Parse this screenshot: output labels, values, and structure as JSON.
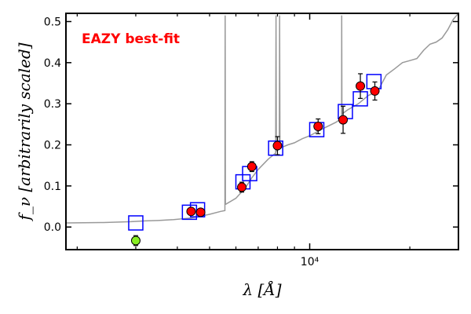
{
  "chart_data": {
    "type": "scatter",
    "title": "",
    "annotation": "EAZY best-fit",
    "annotation_color": "#ff0000",
    "xlabel": "λ [Å]",
    "ylabel": "f_ν [arbitrarily scaled]",
    "x_scale": "log",
    "xlim": [
      1850,
      28000
    ],
    "ylim": [
      -0.055,
      0.52
    ],
    "y_ticks": [
      0.0,
      0.1,
      0.2,
      0.3,
      0.4,
      0.5
    ],
    "y_tick_labels": [
      "0.0",
      "0.1",
      "0.2",
      "0.3",
      "0.4",
      "0.5"
    ],
    "x_major_ticks": [
      10000
    ],
    "x_major_tick_labels": [
      "10⁴"
    ],
    "x_minor_ticks": [
      2000,
      3000,
      4000,
      5000,
      6000,
      7000,
      8000,
      9000,
      20000
    ],
    "grid": false,
    "series": [
      {
        "kind": "model",
        "color": "#999999",
        "points": [
          [
            1850,
            0.01
          ],
          [
            2400,
            0.011
          ],
          [
            2900,
            0.013
          ],
          [
            3200,
            0.015
          ],
          [
            3500,
            0.016
          ],
          [
            3900,
            0.018
          ],
          [
            4400,
            0.022
          ],
          [
            4800,
            0.028
          ],
          [
            5000,
            0.031
          ],
          [
            5400,
            0.038
          ],
          [
            5560,
            0.04
          ],
          [
            5570,
            0.515
          ],
          [
            5580,
            0.055
          ],
          [
            6000,
            0.07
          ],
          [
            6400,
            0.095
          ],
          [
            6700,
            0.12
          ],
          [
            7000,
            0.14
          ],
          [
            7500,
            0.165
          ],
          [
            7900,
            0.18
          ],
          [
            7920,
            0.515
          ],
          [
            7940,
            0.185
          ],
          [
            8100,
            0.19
          ],
          [
            8120,
            0.515
          ],
          [
            8140,
            0.192
          ],
          [
            8300,
            0.195
          ],
          [
            8600,
            0.2
          ],
          [
            9000,
            0.205
          ],
          [
            9500,
            0.215
          ],
          [
            10000,
            0.222
          ],
          [
            11000,
            0.24
          ],
          [
            12000,
            0.255
          ],
          [
            12470,
            0.265
          ],
          [
            12480,
            0.515
          ],
          [
            12500,
            0.275
          ],
          [
            13000,
            0.285
          ],
          [
            14000,
            0.3
          ],
          [
            15000,
            0.32
          ],
          [
            16000,
            0.33
          ],
          [
            17000,
            0.37
          ],
          [
            18000,
            0.385
          ],
          [
            19000,
            0.4
          ],
          [
            20000,
            0.405
          ],
          [
            21000,
            0.41
          ],
          [
            22000,
            0.43
          ],
          [
            23000,
            0.445
          ],
          [
            24000,
            0.45
          ],
          [
            25000,
            0.46
          ],
          [
            26000,
            0.48
          ],
          [
            27000,
            0.505
          ],
          [
            28000,
            0.52
          ]
        ]
      },
      {
        "kind": "model-photometry",
        "marker": "square",
        "color": "#0000ff",
        "points": [
          [
            3000,
            0.01
          ],
          [
            4350,
            0.036
          ],
          [
            4600,
            0.042
          ],
          [
            6300,
            0.11
          ],
          [
            6600,
            0.13
          ],
          [
            7900,
            0.192
          ],
          [
            10500,
            0.237
          ],
          [
            12800,
            0.281
          ],
          [
            14200,
            0.312
          ],
          [
            15600,
            0.354
          ]
        ]
      },
      {
        "kind": "observed",
        "marker": "circle",
        "color": "#ff0000",
        "points": [
          [
            4400,
            0.038,
            0.008
          ],
          [
            4700,
            0.036,
            0.008
          ],
          [
            6250,
            0.097,
            0.012
          ],
          [
            6700,
            0.147,
            0.012
          ],
          [
            8000,
            0.198,
            0.022
          ],
          [
            10600,
            0.245,
            0.018
          ],
          [
            12600,
            0.261,
            0.033
          ],
          [
            14200,
            0.343,
            0.03
          ],
          [
            15700,
            0.331,
            0.022
          ]
        ]
      },
      {
        "kind": "observed-upper",
        "marker": "circle",
        "color": "#88ee22",
        "points": [
          [
            3000,
            -0.033,
            0.012
          ]
        ]
      }
    ]
  }
}
